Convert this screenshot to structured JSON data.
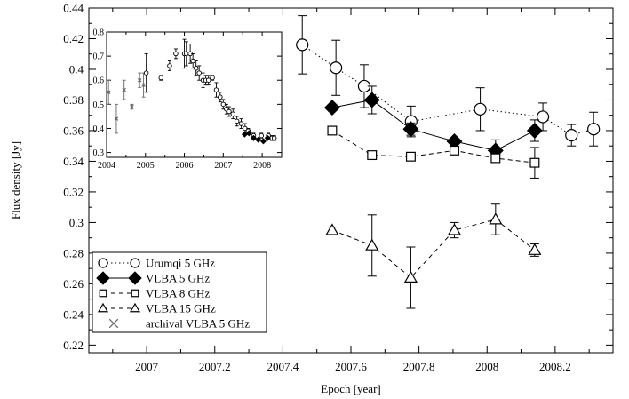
{
  "chart_data": [
    {
      "type": "scatter",
      "xlabel": "Epoch [year]",
      "ylabel": "Flux density [Jy]",
      "xlim": [
        2006.83,
        2008.37
      ],
      "ylim": [
        0.215,
        0.44
      ],
      "x_ticks": [
        2007,
        2007.2,
        2007.4,
        2007.6,
        2007.8,
        2008,
        2008.2
      ],
      "x_tick_labels": [
        "2007",
        "2007.2",
        "2007.4",
        "2007.6",
        "2007.8",
        "2008",
        "2008.2"
      ],
      "y_ticks": [
        0.22,
        0.24,
        0.26,
        0.28,
        0.3,
        0.32,
        0.34,
        0.36,
        0.38,
        0.4,
        0.42,
        0.44
      ],
      "y_tick_labels": [
        "0.22",
        "0.24",
        "0.26",
        "0.28",
        "0.3",
        "0.32",
        "0.34",
        "0.36",
        "0.38",
        "0.4",
        "0.42",
        "0.44"
      ],
      "grid": false,
      "legend_position": "bottom-left",
      "series": [
        {
          "name": "Urumqi 5 GHz",
          "marker": "circle-open",
          "line": "dotted",
          "points": [
            {
              "x": 2007.457,
              "y": 0.416,
              "err": 0.019
            },
            {
              "x": 2007.556,
              "y": 0.401,
              "err": 0.018
            },
            {
              "x": 2007.639,
              "y": 0.389,
              "err": 0.014
            },
            {
              "x": 2007.777,
              "y": 0.366,
              "err": 0.01
            },
            {
              "x": 2007.98,
              "y": 0.374,
              "err": 0.014
            },
            {
              "x": 2008.164,
              "y": 0.369,
              "err": 0.009
            },
            {
              "x": 2008.248,
              "y": 0.357,
              "err": 0.007
            },
            {
              "x": 2008.313,
              "y": 0.361,
              "err": 0.011
            }
          ]
        },
        {
          "name": "VLBA 5 GHz",
          "marker": "diamond-filled",
          "line": "solid",
          "points": [
            {
              "x": 2007.545,
              "y": 0.375,
              "err": 0.002
            },
            {
              "x": 2007.662,
              "y": 0.38,
              "err": 0.009
            },
            {
              "x": 2007.776,
              "y": 0.361,
              "err": 0.004
            },
            {
              "x": 2007.904,
              "y": 0.353,
              "err": 0.002
            },
            {
              "x": 2008.025,
              "y": 0.347,
              "err": 0.007
            },
            {
              "x": 2008.14,
              "y": 0.36,
              "err": 0.007
            }
          ]
        },
        {
          "name": "VLBA 8 GHz",
          "marker": "square-open",
          "line": "dashed",
          "points": [
            {
              "x": 2007.545,
              "y": 0.36,
              "err": 0.002
            },
            {
              "x": 2007.662,
              "y": 0.344,
              "err": 0.001
            },
            {
              "x": 2007.776,
              "y": 0.343,
              "err": 0.001
            },
            {
              "x": 2007.904,
              "y": 0.347,
              "err": 0.001
            },
            {
              "x": 2008.025,
              "y": 0.342,
              "err": 0.001
            },
            {
              "x": 2008.14,
              "y": 0.339,
              "err": 0.01
            }
          ]
        },
        {
          "name": "VLBA 15 GHz",
          "marker": "triangle-open",
          "line": "dashed",
          "points": [
            {
              "x": 2007.545,
              "y": 0.295,
              "err": 0.002
            },
            {
              "x": 2007.662,
              "y": 0.285,
              "err": 0.02
            },
            {
              "x": 2007.776,
              "y": 0.264,
              "err": 0.02
            },
            {
              "x": 2007.904,
              "y": 0.295,
              "err": 0.005
            },
            {
              "x": 2008.025,
              "y": 0.302,
              "err": 0.01
            },
            {
              "x": 2008.14,
              "y": 0.282,
              "err": 0.004
            }
          ]
        },
        {
          "name": "archival VLBA 5 GHz",
          "marker": "cross",
          "line": "none",
          "points": []
        }
      ]
    },
    {
      "type": "scatter",
      "xlim": [
        2004,
        2008.5
      ],
      "ylim": [
        0.28,
        0.8
      ],
      "x_ticks": [
        2004,
        2005,
        2006,
        2007,
        2008
      ],
      "x_tick_labels": [
        "2004",
        "2005",
        "2006",
        "2007",
        "2008"
      ],
      "y_ticks": [
        0.3,
        0.4,
        0.5,
        0.6,
        0.7,
        0.8
      ],
      "y_tick_labels": [
        "0.3",
        "0.4",
        "0.5",
        "0.6",
        "0.7",
        "0.8"
      ],
      "series": [
        {
          "name": "archival VLBA 5 GHz",
          "marker": "cross",
          "points": [
            {
              "x": 2004.05,
              "y": 0.55,
              "err": 0.05
            },
            {
              "x": 2004.25,
              "y": 0.44,
              "err": 0.06
            },
            {
              "x": 2004.45,
              "y": 0.56,
              "err": 0.04
            },
            {
              "x": 2004.65,
              "y": 0.49,
              "err": 0.01
            },
            {
              "x": 2004.85,
              "y": 0.6,
              "err": 0.03
            },
            {
              "x": 2004.95,
              "y": 0.58,
              "err": 0.05
            }
          ]
        },
        {
          "name": "Urumqi 5 GHz",
          "marker": "circle-open",
          "points": [
            {
              "x": 2005.02,
              "y": 0.63,
              "err": 0.08
            },
            {
              "x": 2005.4,
              "y": 0.61,
              "err": 0.01
            },
            {
              "x": 2005.62,
              "y": 0.66,
              "err": 0.02
            },
            {
              "x": 2005.78,
              "y": 0.71,
              "err": 0.02
            },
            {
              "x": 2006.0,
              "y": 0.71,
              "err": 0.06
            },
            {
              "x": 2006.05,
              "y": 0.71,
              "err": 0.05
            },
            {
              "x": 2006.15,
              "y": 0.71,
              "err": 0.04
            },
            {
              "x": 2006.22,
              "y": 0.68,
              "err": 0.03
            },
            {
              "x": 2006.3,
              "y": 0.65,
              "err": 0.03
            },
            {
              "x": 2006.38,
              "y": 0.63,
              "err": 0.03
            },
            {
              "x": 2006.48,
              "y": 0.6,
              "err": 0.03
            },
            {
              "x": 2006.55,
              "y": 0.6,
              "err": 0.02
            },
            {
              "x": 2006.62,
              "y": 0.6,
              "err": 0.02
            },
            {
              "x": 2006.72,
              "y": 0.61,
              "err": 0.01
            },
            {
              "x": 2006.82,
              "y": 0.56,
              "err": 0.03
            },
            {
              "x": 2006.92,
              "y": 0.53,
              "err": 0.02
            },
            {
              "x": 2007.0,
              "y": 0.5,
              "err": 0.02
            },
            {
              "x": 2007.08,
              "y": 0.48,
              "err": 0.02
            },
            {
              "x": 2007.15,
              "y": 0.47,
              "err": 0.02
            },
            {
              "x": 2007.25,
              "y": 0.46,
              "err": 0.02
            },
            {
              "x": 2007.35,
              "y": 0.43,
              "err": 0.02
            },
            {
              "x": 2007.46,
              "y": 0.42,
              "err": 0.02
            },
            {
              "x": 2007.56,
              "y": 0.4,
              "err": 0.02
            },
            {
              "x": 2007.64,
              "y": 0.39,
              "err": 0.01
            },
            {
              "x": 2007.78,
              "y": 0.37,
              "err": 0.01
            },
            {
              "x": 2007.98,
              "y": 0.37,
              "err": 0.01
            },
            {
              "x": 2008.16,
              "y": 0.37,
              "err": 0.01
            },
            {
              "x": 2008.25,
              "y": 0.36,
              "err": 0.01
            },
            {
              "x": 2008.31,
              "y": 0.36,
              "err": 0.01
            }
          ]
        },
        {
          "name": "VLBA 5 GHz",
          "marker": "diamond-filled",
          "points": [
            {
              "x": 2007.55,
              "y": 0.375,
              "err": 0
            },
            {
              "x": 2007.66,
              "y": 0.38,
              "err": 0
            },
            {
              "x": 2007.78,
              "y": 0.36,
              "err": 0
            },
            {
              "x": 2007.9,
              "y": 0.353,
              "err": 0
            },
            {
              "x": 2008.03,
              "y": 0.347,
              "err": 0
            },
            {
              "x": 2008.14,
              "y": 0.36,
              "err": 0
            }
          ]
        }
      ]
    }
  ]
}
